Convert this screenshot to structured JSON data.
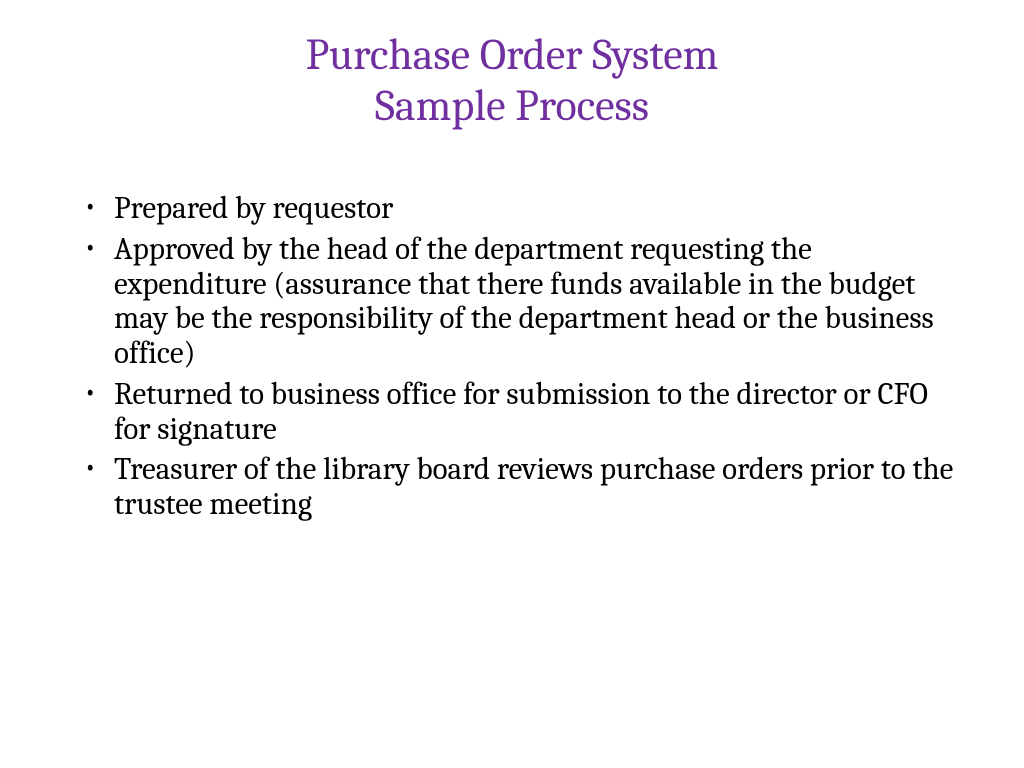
{
  "slide": {
    "title_line1": "Purchase Order System",
    "title_line2": "Sample Process",
    "title_color": "#7030a0",
    "title_fontsize": 44,
    "body_color": "#000000",
    "body_fontsize": 31,
    "background_color": "#ffffff",
    "bullets": [
      "Prepared by requestor",
      "Approved by the head of the department requesting the expenditure (assurance that there funds available in the budget may be the responsibility of the department head or the business office)",
      "Returned to business office for submission to the director or CFO for signature",
      "Treasurer of the library board reviews purchase orders prior to the trustee meeting"
    ]
  }
}
